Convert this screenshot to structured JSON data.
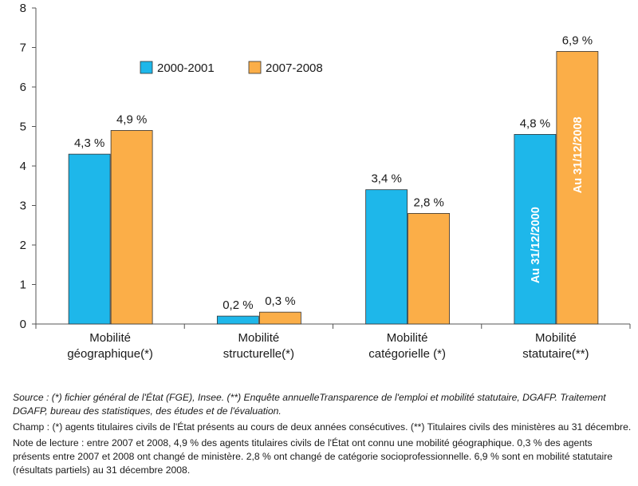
{
  "chart_data": {
    "type": "bar",
    "categories": [
      [
        "Mobilité",
        "géographique(*)"
      ],
      [
        "Mobilité",
        "structurelle(*)"
      ],
      [
        "Mobilité",
        "catégorielle (*)"
      ],
      [
        "Mobilité",
        "statutaire(**)"
      ]
    ],
    "series": [
      {
        "name": "2000-2001",
        "values": [
          4.3,
          0.2,
          3.4,
          4.8
        ],
        "labels": [
          "4,3 %",
          "0,2 %",
          "3,4 %",
          "4,8 %"
        ],
        "color": "#1eb7ea"
      },
      {
        "name": "2007-2008",
        "values": [
          4.9,
          0.3,
          2.8,
          6.9
        ],
        "labels": [
          "4,9 %",
          "0,3 %",
          "2,8 %",
          "6,9 %"
        ],
        "color": "#fbae48"
      }
    ],
    "bar_annotations": [
      {
        "category_index": 3,
        "series_index": 0,
        "text": "Au 31/12/2000"
      },
      {
        "category_index": 3,
        "series_index": 1,
        "text": "Au 31/12/2008"
      }
    ],
    "ylim": [
      0,
      8
    ],
    "yticks": [
      0,
      1,
      2,
      3,
      4,
      5,
      6,
      7,
      8
    ],
    "grid": false,
    "legend_position": "top-center"
  },
  "notes": {
    "source": "Source : (*) fichier général de l'État (FGE), Insee.  (**) Enquête annuelleTransparence de l'emploi et mobilité statutaire, DGAFP. Traitement DGAFP, bureau des statistiques, des études et de l'évaluation.",
    "champ": "Champ : (*) agents titulaires civils de l'État présents au cours de deux années consécutives. (**) Titulaires civils des ministères au 31 décembre.",
    "lecture": "Note de lecture : entre 2007 et 2008, 4,9 % des agents titulaires civils de l'État ont connu une mobilité géographique. 0,3 % des agents présents entre 2007 et 2008 ont changé de ministère. 2,8 % ont changé de catégorie socioprofessionnelle. 6,9 % sont en mobilité statutaire (résultats partiels) au 31 décembre 2008."
  }
}
